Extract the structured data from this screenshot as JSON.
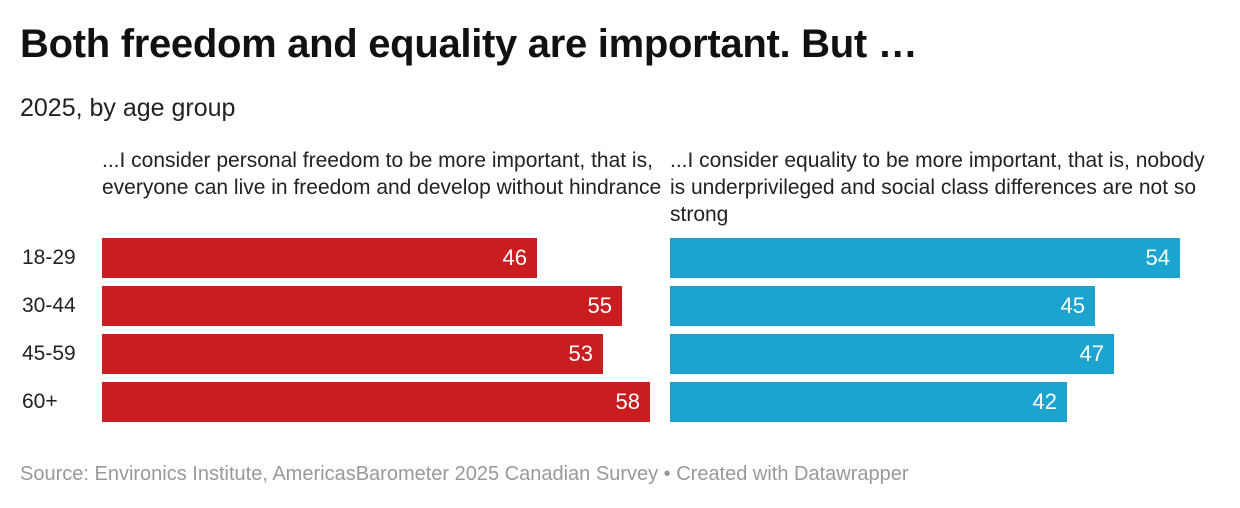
{
  "chart_data": {
    "type": "bar",
    "title": "Both freedom and equality are important. But …",
    "subtitle": "2025, by age group",
    "categories": [
      "18-29",
      "30-44",
      "45-59",
      "60+"
    ],
    "series": [
      {
        "name": "...I consider personal freedom to be more important, that is, everyone can live in freedom and develop without hindrance",
        "color": "#c91d1f",
        "values": [
          46,
          55,
          53,
          58
        ]
      },
      {
        "name": "...I consider equality to be more important, that is, nobody is underprivileged and social class differences are not so strong",
        "color": "#1ca3ce",
        "values": [
          54,
          45,
          47,
          42
        ]
      }
    ],
    "xlim": [
      0,
      58
    ],
    "source": "Source: Environics Institute, AmericasBarometer 2025 Canadian Survey • Created with Datawrapper"
  }
}
